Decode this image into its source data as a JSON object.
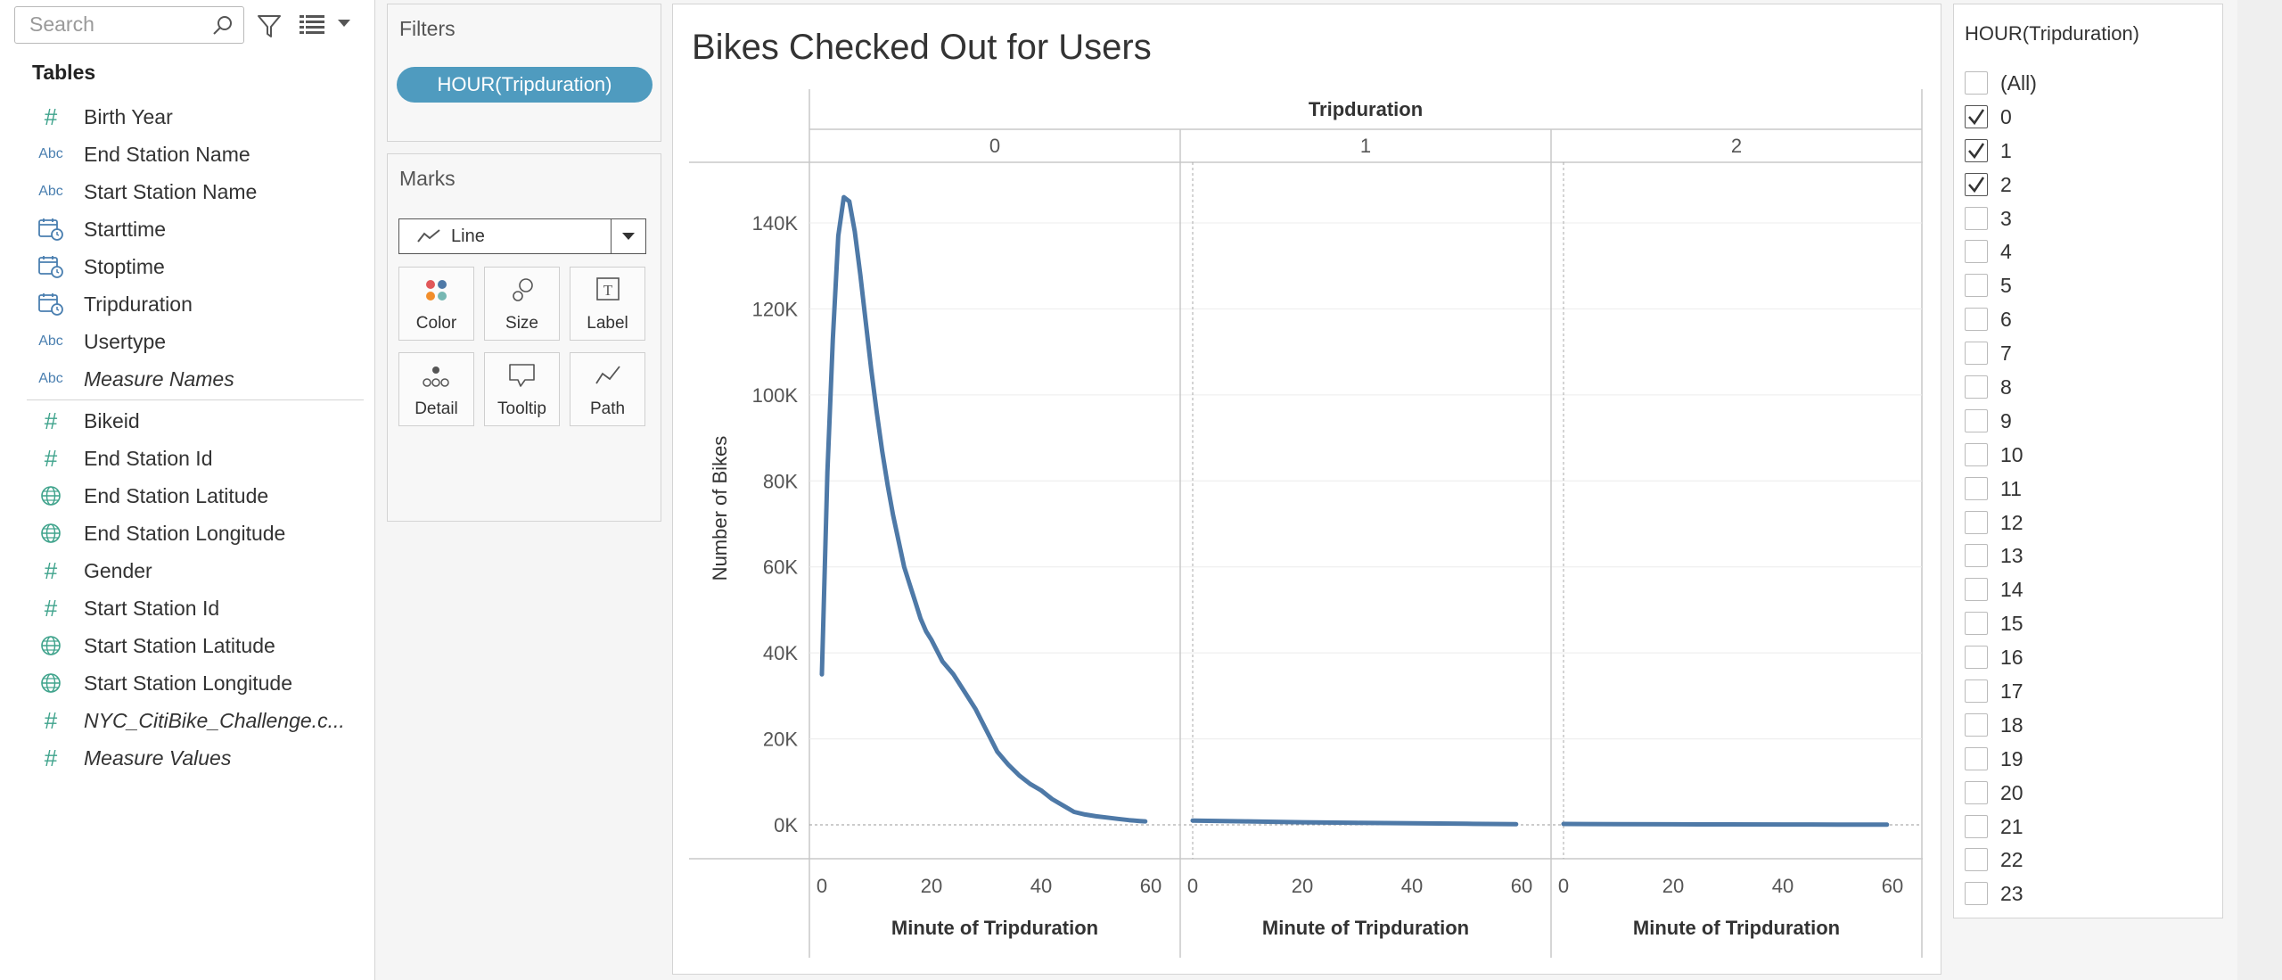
{
  "search": {
    "placeholder": "Search"
  },
  "data_pane": {
    "tables_title": "Tables",
    "fields": [
      {
        "label": "Birth Year",
        "type": "number"
      },
      {
        "label": "End Station Name",
        "type": "string"
      },
      {
        "label": "Start Station Name",
        "type": "string"
      },
      {
        "label": "Starttime",
        "type": "datetime"
      },
      {
        "label": "Stoptime",
        "type": "datetime"
      },
      {
        "label": "Tripduration",
        "type": "datetime"
      },
      {
        "label": "Usertype",
        "type": "string"
      },
      {
        "label": "Measure Names",
        "type": "string",
        "italic": true
      }
    ],
    "measures": [
      {
        "label": "Bikeid",
        "type": "number"
      },
      {
        "label": "End Station Id",
        "type": "number"
      },
      {
        "label": "End Station Latitude",
        "type": "geo"
      },
      {
        "label": "End Station Longitude",
        "type": "geo"
      },
      {
        "label": "Gender",
        "type": "number"
      },
      {
        "label": "Start Station Id",
        "type": "number"
      },
      {
        "label": "Start Station Latitude",
        "type": "geo"
      },
      {
        "label": "Start Station Longitude",
        "type": "geo"
      },
      {
        "label": "NYC_CitiBike_Challenge.c...",
        "type": "number",
        "italic": true
      },
      {
        "label": "Measure Values",
        "type": "number",
        "italic": true
      }
    ]
  },
  "filters_card": {
    "title": "Filters",
    "pill": "HOUR(Tripduration)"
  },
  "marks_card": {
    "title": "Marks",
    "mark_type": "Line",
    "buttons": {
      "color": "Color",
      "size": "Size",
      "label": "Label",
      "detail": "Detail",
      "tooltip": "Tooltip",
      "path": "Path"
    }
  },
  "viz": {
    "title": "Bikes Checked Out for Users"
  },
  "chart_data": {
    "type": "line",
    "title": "Bikes Checked Out for Users",
    "column_header": "Tripduration",
    "panels": [
      "0",
      "1",
      "2"
    ],
    "xlabel": "Minute of Tripduration",
    "ylabel": "Number of Bikes",
    "xlim": [
      0,
      60
    ],
    "ylim": [
      0,
      150000
    ],
    "x_ticks": [
      "0",
      "20",
      "40",
      "60"
    ],
    "y_ticks": [
      "0K",
      "20K",
      "40K",
      "60K",
      "80K",
      "100K",
      "120K",
      "140K"
    ],
    "y_tick_values": [
      0,
      20000,
      40000,
      60000,
      80000,
      100000,
      120000,
      140000
    ],
    "line_color": "#4e79a7",
    "grid": true,
    "series": [
      {
        "panel": "0",
        "x": [
          0,
          1,
          2,
          3,
          4,
          5,
          6,
          7,
          8,
          9,
          10,
          11,
          12,
          13,
          14,
          15,
          16,
          17,
          18,
          19,
          20,
          22,
          24,
          26,
          28,
          30,
          32,
          34,
          36,
          38,
          40,
          42,
          44,
          46,
          48,
          50,
          52,
          54,
          56,
          58,
          59
        ],
        "values": [
          35000,
          82000,
          113000,
          137000,
          146000,
          145000,
          138000,
          128000,
          117000,
          106000,
          96000,
          87000,
          79000,
          72000,
          66000,
          60000,
          56000,
          52000,
          48000,
          45000,
          43000,
          38000,
          35000,
          31000,
          27000,
          22000,
          17000,
          14000,
          11500,
          9500,
          8000,
          6000,
          4500,
          3000,
          2400,
          2000,
          1700,
          1400,
          1100,
          900,
          800
        ]
      },
      {
        "panel": "1",
        "x": [
          0,
          10,
          20,
          30,
          40,
          50,
          59
        ],
        "values": [
          1000,
          800,
          600,
          450,
          350,
          250,
          150
        ]
      },
      {
        "panel": "2",
        "x": [
          0,
          10,
          20,
          30,
          40,
          50,
          59
        ],
        "values": [
          200,
          150,
          120,
          100,
          80,
          60,
          50
        ]
      }
    ]
  },
  "filter_card": {
    "title": "HOUR(Tripduration)",
    "items": [
      {
        "label": "(All)",
        "checked": false
      },
      {
        "label": "0",
        "checked": true
      },
      {
        "label": "1",
        "checked": true
      },
      {
        "label": "2",
        "checked": true
      },
      {
        "label": "3",
        "checked": false
      },
      {
        "label": "4",
        "checked": false
      },
      {
        "label": "5",
        "checked": false
      },
      {
        "label": "6",
        "checked": false
      },
      {
        "label": "7",
        "checked": false
      },
      {
        "label": "8",
        "checked": false
      },
      {
        "label": "9",
        "checked": false
      },
      {
        "label": "10",
        "checked": false
      },
      {
        "label": "11",
        "checked": false
      },
      {
        "label": "12",
        "checked": false
      },
      {
        "label": "13",
        "checked": false
      },
      {
        "label": "14",
        "checked": false
      },
      {
        "label": "15",
        "checked": false
      },
      {
        "label": "16",
        "checked": false
      },
      {
        "label": "17",
        "checked": false
      },
      {
        "label": "18",
        "checked": false
      },
      {
        "label": "19",
        "checked": false
      },
      {
        "label": "20",
        "checked": false
      },
      {
        "label": "21",
        "checked": false
      },
      {
        "label": "22",
        "checked": false
      },
      {
        "label": "23",
        "checked": false
      }
    ]
  }
}
